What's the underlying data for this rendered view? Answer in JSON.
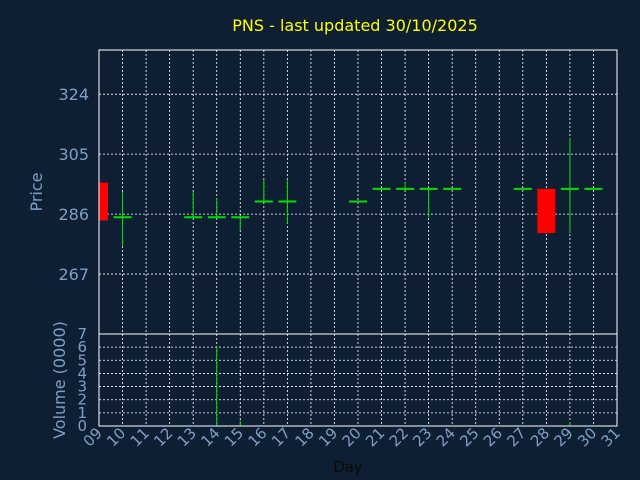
{
  "colors": {
    "background": "#0f1f33",
    "grid": "#ffffff",
    "title": "#ffff00",
    "axis_text": "#7f9fc6",
    "up": "#00e000",
    "down": "#ff0000"
  },
  "chart_data": [
    {
      "type": "candlestick",
      "title": "PNS - last updated 30/10/2025",
      "xlabel": "",
      "ylabel": "Price",
      "ylim": [
        248,
        338
      ],
      "yticks": [
        267,
        286,
        305,
        324
      ],
      "grid": true,
      "candles": [
        {
          "day": 9,
          "open": 296,
          "high": 296,
          "low": 284,
          "close": 284
        },
        {
          "day": 10,
          "open": 285,
          "high": 293,
          "low": 276,
          "close": 285
        },
        {
          "day": 13,
          "open": 285,
          "high": 293,
          "low": 285,
          "close": 285
        },
        {
          "day": 14,
          "open": 285,
          "high": 291,
          "low": 285,
          "close": 285
        },
        {
          "day": 15,
          "open": 285,
          "high": 285,
          "low": 281,
          "close": 285
        },
        {
          "day": 16,
          "open": 290,
          "high": 297,
          "low": 290,
          "close": 290
        },
        {
          "day": 17,
          "open": 290,
          "high": 297,
          "low": 283,
          "close": 290
        },
        {
          "day": 20,
          "open": 290,
          "high": 290,
          "low": 290,
          "close": 290
        },
        {
          "day": 21,
          "open": 294,
          "high": 294,
          "low": 294,
          "close": 294
        },
        {
          "day": 22,
          "open": 294,
          "high": 296,
          "low": 294,
          "close": 294
        },
        {
          "day": 23,
          "open": 294,
          "high": 294,
          "low": 285,
          "close": 294
        },
        {
          "day": 24,
          "open": 294,
          "high": 294,
          "low": 294,
          "close": 294
        },
        {
          "day": 27,
          "open": 294,
          "high": 294,
          "low": 294,
          "close": 294
        },
        {
          "day": 28,
          "open": 294,
          "high": 294,
          "low": 280,
          "close": 280
        },
        {
          "day": 29,
          "open": 294,
          "high": 310,
          "low": 280,
          "close": 294
        },
        {
          "day": 30,
          "open": 294,
          "high": 294,
          "low": 294,
          "close": 294
        }
      ]
    },
    {
      "type": "bar",
      "title": "",
      "xlabel": "Day",
      "ylabel": "Volume (0000)",
      "ylim": [
        0,
        7
      ],
      "yticks": [
        0,
        1,
        2,
        3,
        4,
        5,
        6,
        7
      ],
      "xticks": [
        "09",
        "10",
        "11",
        "12",
        "13",
        "14",
        "15",
        "16",
        "17",
        "18",
        "19",
        "20",
        "21",
        "22",
        "23",
        "24",
        "25",
        "26",
        "27",
        "28",
        "29",
        "30",
        "31"
      ],
      "grid": true,
      "categories": [
        "09",
        "10",
        "13",
        "14",
        "15",
        "16",
        "17",
        "20",
        "21",
        "22",
        "23",
        "24",
        "27",
        "28",
        "29",
        "30"
      ],
      "values": [
        0,
        0,
        0,
        6.1,
        0.4,
        0,
        0,
        0,
        0,
        0,
        0,
        0,
        0,
        0,
        0.3,
        0
      ]
    }
  ]
}
